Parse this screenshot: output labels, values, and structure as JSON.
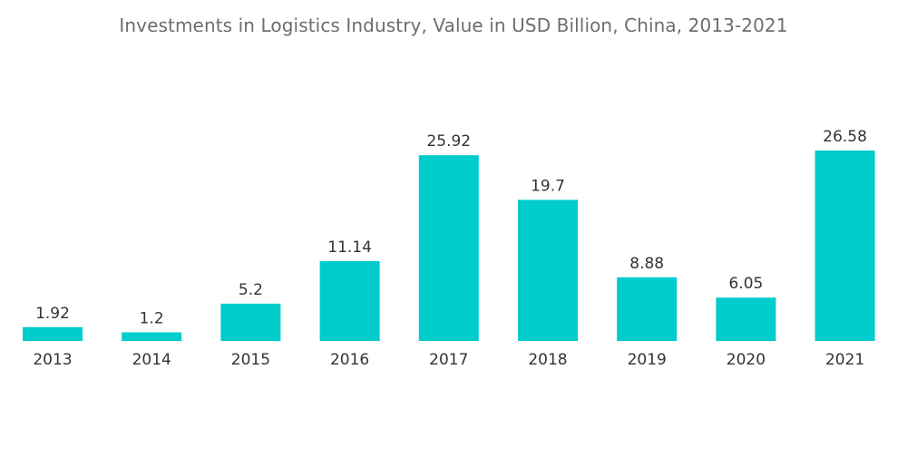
{
  "chart_data": {
    "type": "bar",
    "title": "Investments in Logistics Industry, Value in USD Billion, China, 2013-2021",
    "xlabel": "",
    "ylabel": "",
    "categories": [
      "2013",
      "2014",
      "2015",
      "2016",
      "2017",
      "2018",
      "2019",
      "2020",
      "2021"
    ],
    "values": [
      1.92,
      1.2,
      5.2,
      11.14,
      25.92,
      19.7,
      8.88,
      6.05,
      26.58
    ],
    "value_labels": [
      "1.92",
      "1.2",
      "5.2",
      "11.14",
      "25.92",
      "19.7",
      "8.88",
      "6.05",
      "26.58"
    ],
    "ylim": [
      0,
      26.58
    ],
    "grid": false,
    "legend": "none",
    "bar_color": "#00cccc",
    "text_color": "#333333",
    "title_color": "#6d6d6d"
  }
}
